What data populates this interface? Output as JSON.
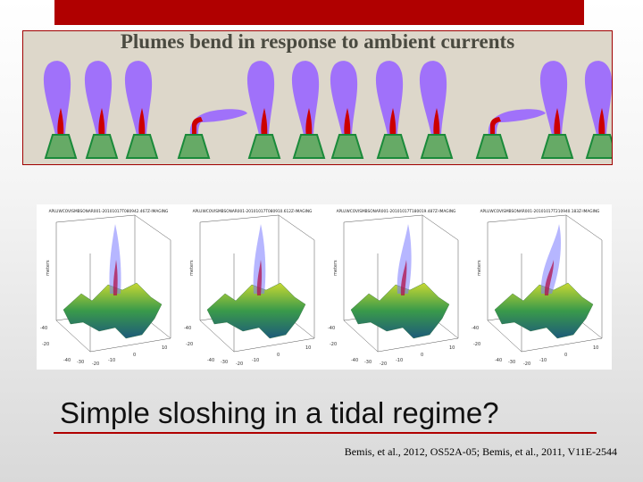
{
  "slide": {
    "title": "Plumes bend in response to ambient currents",
    "question": "Simple sloshing in a tidal regime?",
    "citation": "Bemis, et al., 2012, OS52A-05; Bemis, et al., 2011, V11E-2544",
    "accent_color": "#b00000",
    "panel_color": "#ddd7ca"
  },
  "plume_diagram": {
    "plume_color": "#9966ff",
    "core_color": "#cc0000",
    "vent_color": "#66aa66",
    "plumes": [
      {
        "state": "upright"
      },
      {
        "state": "upright"
      },
      {
        "state": "upright"
      },
      {
        "state": "bent"
      },
      {
        "state": "upright"
      },
      {
        "state": "upright"
      },
      {
        "state": "upright"
      },
      {
        "state": "upright"
      },
      {
        "state": "upright"
      },
      {
        "state": "bent"
      },
      {
        "state": "upright"
      },
      {
        "state": "upright"
      }
    ]
  },
  "sonar_figure": {
    "subplots": [
      {
        "title": "APLUWCOVISMBSONAR001-20101017T080942.467Z-IMAGING"
      },
      {
        "title": "APLUWCOVISMBSONAR001-20101017T080910.612Z-IMAGING"
      },
      {
        "title": "APLUWCOVISMBSONAR001-20101017T180019.487Z-IMAGING"
      },
      {
        "title": "APLUWCOVISMBSONAR001-20101017T210940.183Z-IMAGING"
      }
    ],
    "axis_label": "meters",
    "x_ticks": [
      "-40",
      "-30",
      "-20",
      "-10",
      "0",
      "10"
    ],
    "y_ticks": [
      "-40",
      "-20",
      "0",
      "20"
    ]
  }
}
